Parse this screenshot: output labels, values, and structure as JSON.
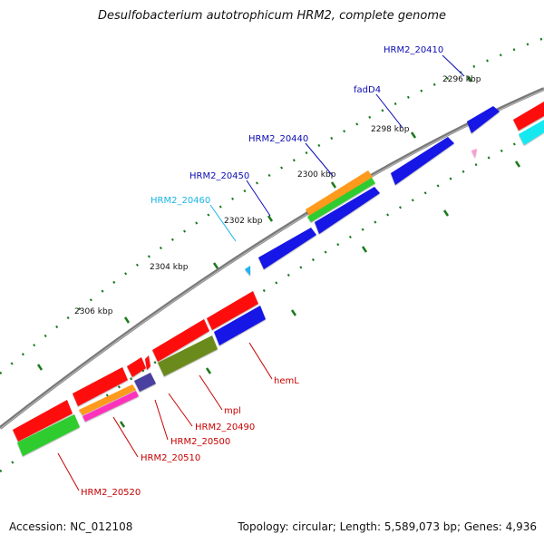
{
  "title": "Desulfobacterium autotrophicum HRM2, complete genome",
  "footer": {
    "accession": "Accession: NC_012108",
    "topology": "Topology: circular; Length: 5,589,073 bp; Genes: 4,936"
  },
  "colors": {
    "blue": "#1212e6",
    "red": "#ff1010",
    "orange": "#ff9a1a",
    "green": "#2ecc2e",
    "olive": "#6b8a1c",
    "magenta": "#ff33bb",
    "indigo": "#4a40a0",
    "cyan": "#18e8f0",
    "pink": "#ff9ad2",
    "lightblue": "#1ab4f0",
    "tick": "#1a7a1a",
    "backbone": "#808080"
  },
  "scale_labels": [
    "2296 kbp",
    "2298 kbp",
    "2300 kbp",
    "2302 kbp",
    "2304 kbp",
    "2306 kbp"
  ],
  "gene_labels": [
    {
      "text": "HRM2_20410",
      "color": "#0c0cb4"
    },
    {
      "text": "fadD4",
      "color": "#0c0cb4"
    },
    {
      "text": "HRM2_20440",
      "color": "#0c0cb4"
    },
    {
      "text": "HRM2_20450",
      "color": "#0c0cb4"
    },
    {
      "text": "HRM2_20460",
      "color": "#1ab4e6"
    },
    {
      "text": "hemL",
      "color": "#c80000"
    },
    {
      "text": "mpl",
      "color": "#c80000"
    },
    {
      "text": "HRM2_20490",
      "color": "#c80000"
    },
    {
      "text": "HRM2_20500",
      "color": "#c80000"
    },
    {
      "text": "HRM2_20510",
      "color": "#c80000"
    },
    {
      "text": "HRM2_20520",
      "color": "#c80000"
    }
  ]
}
